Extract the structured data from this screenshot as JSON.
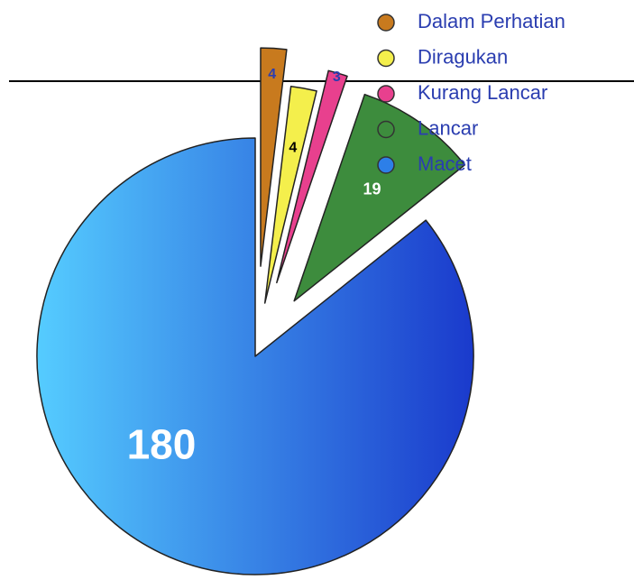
{
  "chart_data": {
    "type": "pie",
    "categories": [
      "Dalam Perhatian",
      "Diragukan",
      "Kurang Lancar",
      "Lancar",
      "Macet"
    ],
    "values": [
      4,
      4,
      3,
      19,
      180
    ],
    "colors": [
      "#c87a1e",
      "#f4ef4c",
      "#e8408e",
      "#3d8c3d",
      "#2d7fe8"
    ]
  }
}
